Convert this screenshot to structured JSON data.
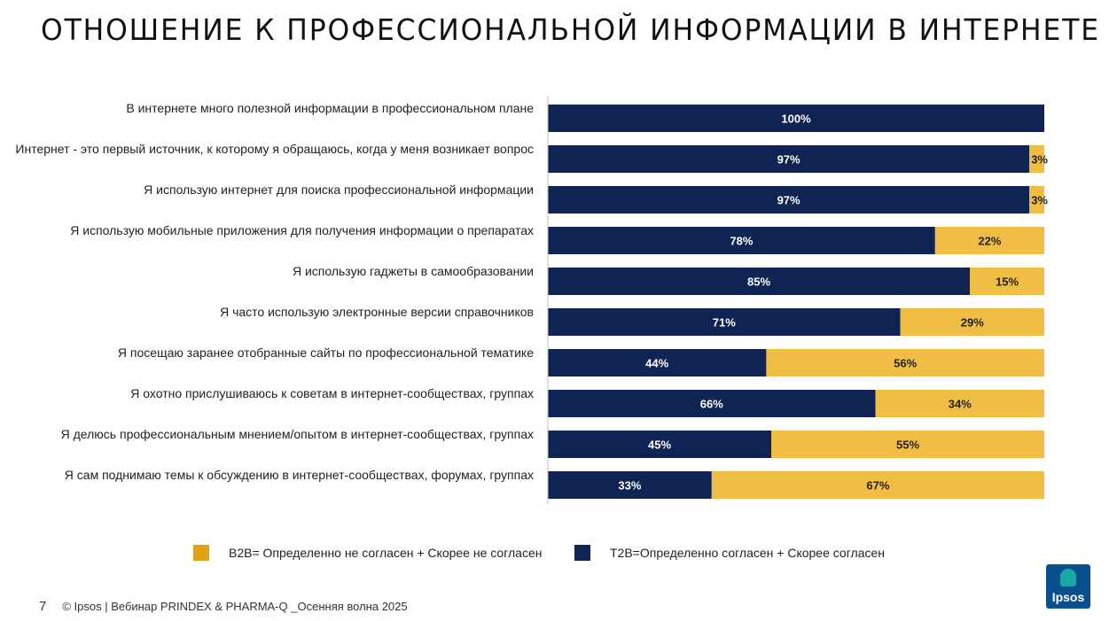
{
  "page": {
    "title": "ОТНОШЕНИЕ К ПРОФЕССИОНАЛЬНОЙ ИНФОРМАЦИИ В ИНТЕРНЕТЕ",
    "page_number": "7",
    "footer": "© Ipsos | Вебинар PRINDEX & PHARMA-Q _Осенняя волна 2025",
    "logo_text": "Ipsos"
  },
  "colors": {
    "t2b": "#0f2453",
    "b2b": "#f0bd45",
    "b2b_legend": "#e0a318"
  },
  "legend": {
    "b2b": "B2B= Определенно не согласен + Скорее не согласен",
    "t2b": "T2B=Определенно согласен + Скорее согласен"
  },
  "chart_data": {
    "type": "bar",
    "orientation": "horizontal",
    "stacked": true,
    "unit": "%",
    "categories": [
      "В интернете много полезной информации в профессиональном плане",
      "Интернет - это первый источник, к которому я обращаюсь, когда у меня возникает вопрос",
      "Я использую интернет для поиска профессиональной информации",
      "Я использую мобильные приложения для получения информации о препаратах",
      "Я использую гаджеты в самообразовании",
      "Я часто использую электронные версии справочников",
      "Я посещаю заранее отобранные сайты по профессиональной тематике",
      "Я охотно прислушиваюсь к советам в интернет-сообществах, группах",
      "Я делюсь профессиональным мнением/опытом в интернет-сообществах, группах",
      "Я сам поднимаю темы к обсуждению в интернет-сообществах, форумах, группах"
    ],
    "series": [
      {
        "name": "T2B=Определенно согласен + Скорее согласен",
        "values": [
          100,
          97,
          97,
          78,
          85,
          71,
          44,
          66,
          45,
          33
        ]
      },
      {
        "name": "B2B= Определенно не согласен + Скорее не согласен",
        "values": [
          0,
          3,
          3,
          22,
          15,
          29,
          56,
          34,
          55,
          67
        ]
      }
    ],
    "xlim": [
      0,
      100
    ],
    "legend_position": "bottom"
  }
}
